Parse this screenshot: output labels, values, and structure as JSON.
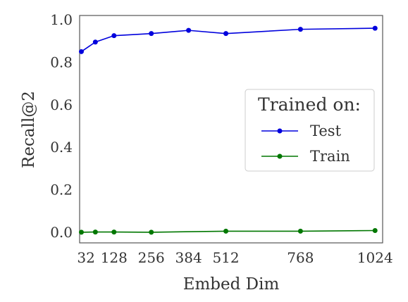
{
  "chart_data": {
    "type": "line",
    "xlabel": "Embed Dim",
    "ylabel": "Recall@2",
    "xlim": [
      10,
      1050
    ],
    "ylim": [
      -0.05,
      1.02
    ],
    "xticks": [
      32,
      128,
      256,
      384,
      512,
      768,
      1024
    ],
    "xtick_labels": [
      "32",
      "128",
      "256",
      "384",
      "512",
      "768",
      "1024"
    ],
    "yticks": [
      0.0,
      0.2,
      0.4,
      0.6,
      0.8,
      1.0
    ],
    "ytick_labels": [
      "0.0",
      "0.2",
      "0.4",
      "0.6",
      "0.8",
      "1.0"
    ],
    "grid": false,
    "legend": {
      "title": "Trained on:",
      "placement": "center-right",
      "entries": [
        "Test",
        "Train"
      ]
    },
    "series": [
      {
        "name": "Test",
        "color": "#0000dd",
        "x": [
          16,
          64,
          128,
          256,
          384,
          512,
          768,
          1024
        ],
        "y": [
          0.85,
          0.895,
          0.925,
          0.935,
          0.95,
          0.935,
          0.955,
          0.96
        ]
      },
      {
        "name": "Train",
        "color": "#007700",
        "x": [
          16,
          64,
          128,
          256,
          512,
          768,
          1024
        ],
        "y": [
          0.0,
          0.001,
          0.001,
          0.0,
          0.005,
          0.005,
          0.008
        ]
      }
    ]
  }
}
